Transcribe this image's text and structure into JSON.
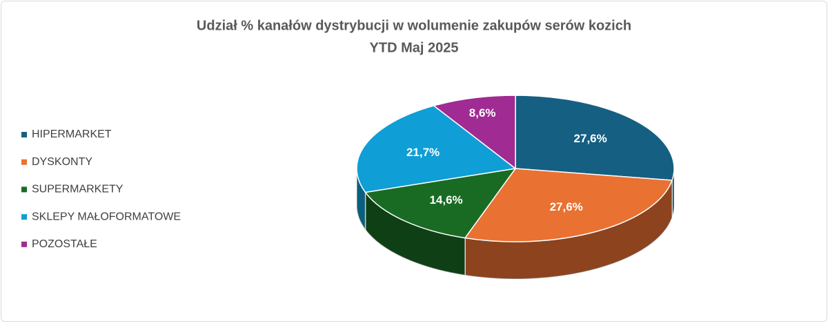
{
  "chart_data": {
    "type": "pie3d",
    "title": "Udział % kanałów dystrybucji w wolumenie zakupów serów kozich",
    "subtitle": "YTD Maj 2025",
    "categories": [
      "HIPERMARKET",
      "DYSKONTY",
      "SUPERMARKETY",
      "SKLEPY MAŁOFORMATOWE",
      "POZOSTAŁE"
    ],
    "values": [
      27.6,
      27.6,
      14.6,
      21.7,
      8.6
    ],
    "value_labels": [
      "27,6%",
      "27,6%",
      "14,6%",
      "21,7%",
      "8,6%"
    ],
    "colors": [
      "#155f82",
      "#e97132",
      "#196b24",
      "#0f9ed5",
      "#a02b93"
    ],
    "legend": "left"
  }
}
